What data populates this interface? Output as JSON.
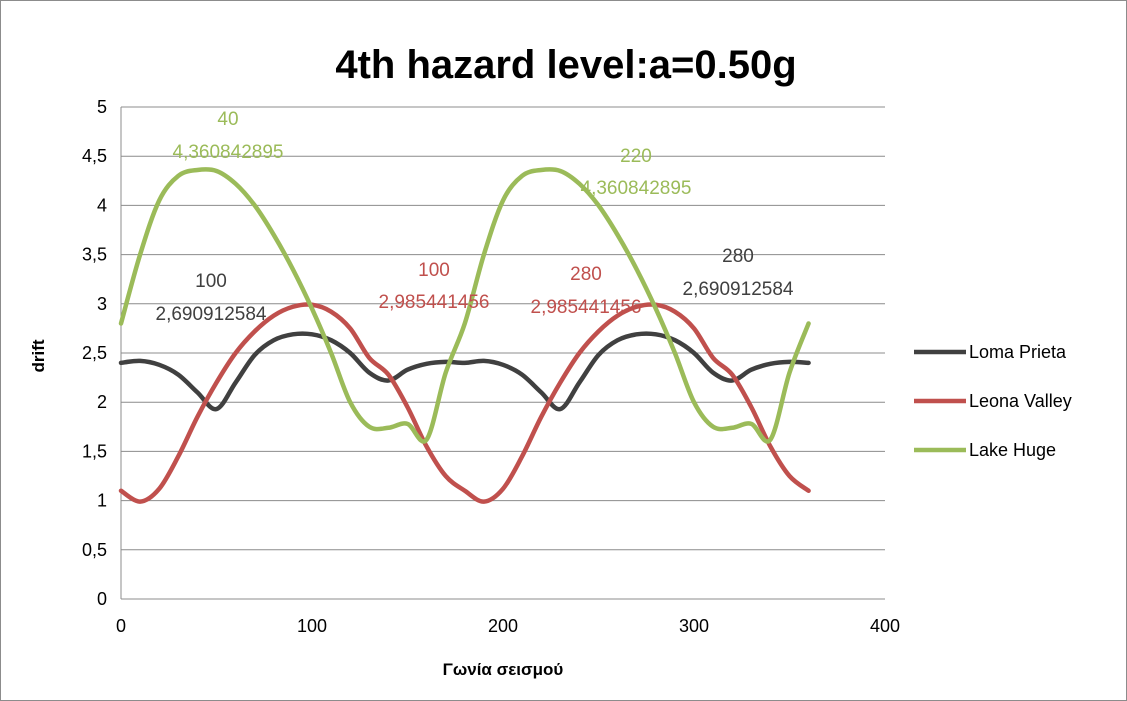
{
  "chart_data": {
    "type": "line",
    "title": "4th hazard level:a=0.50g",
    "xlabel": "Γωνία σεισμού",
    "ylabel": "drift",
    "xlim": [
      0,
      400
    ],
    "ylim": [
      0,
      5
    ],
    "x_ticks": [
      "0",
      "100",
      "200",
      "300",
      "400"
    ],
    "y_ticks": [
      "0",
      "0,5",
      "1",
      "1,5",
      "2",
      "2,5",
      "3",
      "3,5",
      "4",
      "4,5",
      "5"
    ],
    "grid": "horizontal",
    "legend_position": "right",
    "series": [
      {
        "name": "Loma Prieta",
        "color": "#404040",
        "x": [
          0,
          10,
          20,
          30,
          40,
          50,
          60,
          70,
          80,
          90,
          100,
          110,
          120,
          130,
          140,
          150,
          160,
          170,
          180,
          190,
          200,
          210,
          220,
          230,
          240,
          250,
          260,
          270,
          280,
          290,
          300,
          310,
          320,
          330,
          340,
          350,
          360
        ],
        "y": [
          2.4,
          2.42,
          2.38,
          2.28,
          2.1,
          1.93,
          2.2,
          2.48,
          2.63,
          2.69,
          2.69,
          2.63,
          2.5,
          2.3,
          2.22,
          2.33,
          2.39,
          2.41,
          2.4,
          2.42,
          2.38,
          2.28,
          2.1,
          1.93,
          2.2,
          2.48,
          2.63,
          2.69,
          2.69,
          2.63,
          2.5,
          2.3,
          2.22,
          2.33,
          2.39,
          2.41,
          2.4
        ]
      },
      {
        "name": "Leona Valley",
        "color": "#c0504d",
        "x": [
          0,
          10,
          20,
          30,
          40,
          50,
          60,
          70,
          80,
          90,
          100,
          110,
          120,
          130,
          140,
          150,
          160,
          170,
          180,
          190,
          200,
          210,
          220,
          230,
          240,
          250,
          260,
          270,
          280,
          290,
          300,
          310,
          320,
          330,
          340,
          350,
          360
        ],
        "y": [
          1.1,
          0.99,
          1.12,
          1.45,
          1.85,
          2.2,
          2.5,
          2.72,
          2.88,
          2.97,
          2.99,
          2.92,
          2.75,
          2.45,
          2.28,
          1.95,
          1.55,
          1.25,
          1.1,
          0.99,
          1.12,
          1.45,
          1.85,
          2.2,
          2.5,
          2.72,
          2.88,
          2.97,
          2.99,
          2.92,
          2.75,
          2.45,
          2.28,
          1.95,
          1.55,
          1.25,
          1.1
        ]
      },
      {
        "name": "Lake Huge",
        "color": "#9bbb59",
        "x": [
          0,
          10,
          20,
          30,
          40,
          50,
          60,
          70,
          80,
          90,
          100,
          110,
          120,
          130,
          140,
          150,
          160,
          170,
          180,
          190,
          200,
          210,
          220,
          230,
          240,
          250,
          260,
          270,
          280,
          290,
          300,
          310,
          320,
          330,
          340,
          350,
          360
        ],
        "y": [
          2.8,
          3.5,
          4.05,
          4.3,
          4.36,
          4.35,
          4.22,
          4.0,
          3.7,
          3.35,
          2.95,
          2.5,
          2.0,
          1.75,
          1.74,
          1.78,
          1.62,
          2.3,
          2.8,
          3.5,
          4.05,
          4.3,
          4.36,
          4.35,
          4.22,
          4.0,
          3.7,
          3.35,
          2.95,
          2.5,
          2.0,
          1.75,
          1.74,
          1.78,
          1.62,
          2.3,
          2.8
        ]
      }
    ],
    "annotations": [
      {
        "series": "Lake Huge",
        "line1": "40",
        "line2": "4,360842895",
        "color": "#9bbb59"
      },
      {
        "series": "Lake Huge",
        "line1": "220",
        "line2": "4,360842895",
        "color": "#9bbb59"
      },
      {
        "series": "Loma Prieta",
        "line1": "100",
        "line2": "2,690912584",
        "color": "#404040"
      },
      {
        "series": "Loma Prieta",
        "line1": "280",
        "line2": "2,690912584",
        "color": "#404040"
      },
      {
        "series": "Leona Valley",
        "line1": "100",
        "line2": "2,985441456",
        "color": "#c0504d"
      },
      {
        "series": "Leona Valley",
        "line1": "280",
        "line2": "2,985441456",
        "color": "#c0504d"
      }
    ]
  }
}
